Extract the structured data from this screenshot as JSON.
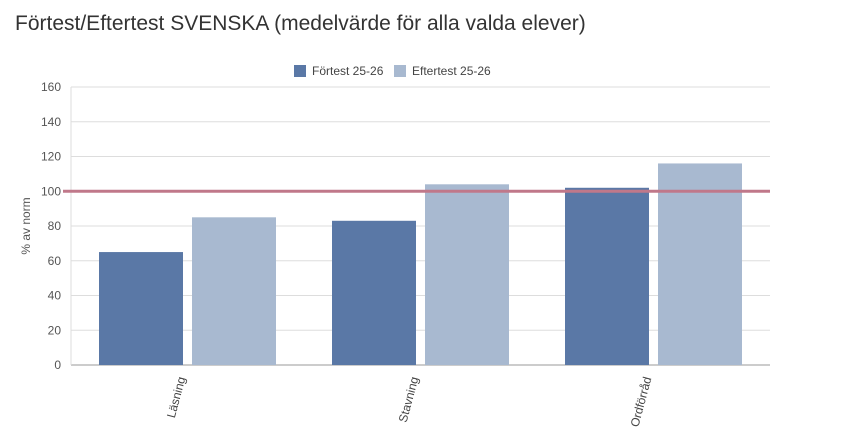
{
  "title": "Förtest/Eftertest SVENSKA (medelvärde för alla valda elever)",
  "chart_data": {
    "type": "bar",
    "title": "Förtest/Eftertest SVENSKA (medelvärde för alla valda elever)",
    "categories": [
      "Läsning",
      "Stavning",
      "Ordförråd"
    ],
    "series": [
      {
        "name": "Förtest 25-26",
        "values": [
          65,
          83,
          102
        ],
        "color": "#5a78a6"
      },
      {
        "name": "Eftertest 25-26",
        "values": [
          85,
          104,
          116
        ],
        "color": "#a8b9d0"
      }
    ],
    "xlabel": "",
    "ylabel": "% av norm",
    "ylim": [
      0,
      160
    ],
    "yticks": [
      0,
      20,
      40,
      60,
      80,
      100,
      120,
      140,
      160
    ],
    "reference_line": {
      "value": 100,
      "color": "#c0788a"
    },
    "grid": true,
    "legend": "top-center",
    "colors": {
      "gridline": "#dddddd",
      "axis": "#999999"
    }
  }
}
